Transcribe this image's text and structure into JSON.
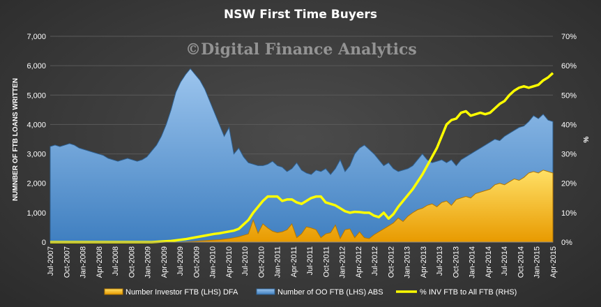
{
  "chart_data": {
    "type": "area",
    "title": "NSW First Time Buyers",
    "watermark": "©Digital Finance Analytics",
    "ylabel": "NUMNBER OF FTB LOANS WRITTEN",
    "y2label": "%",
    "ylim": [
      0,
      7000
    ],
    "y2lim": [
      0,
      70
    ],
    "yticks": [
      0,
      1000,
      2000,
      3000,
      4000,
      5000,
      6000,
      7000
    ],
    "y2ticks": [
      0,
      10,
      20,
      30,
      40,
      50,
      60,
      70
    ],
    "x_tick_labels": [
      "Jul-2007",
      "Oct-2007",
      "Jan-2008",
      "Apr-2008",
      "Jul-2008",
      "Oct-2008",
      "Jan-2009",
      "Apr-2009",
      "Jul-2009",
      "Oct-2009",
      "Jan-2010",
      "Apr-2010",
      "Jul-2010",
      "Oct-2010",
      "Jan-2011",
      "Apr-2011",
      "Jul-2011",
      "Oct-2011",
      "Jan-2012",
      "Apr-2012",
      "Jul-2012",
      "Oct-2012",
      "Jan-2013",
      "Apr-2013",
      "Jul-2013",
      "Oct-2013",
      "Jan-2014",
      "Apr-2014",
      "Jul-2014",
      "Oct-2014",
      "Jan-2015",
      "Apr-2015"
    ],
    "x_start": "Jul-2007",
    "legend_position": "bottom",
    "grid": true,
    "series": [
      {
        "name": "Number Investor FTB (LHS) DFA",
        "kind": "area",
        "axis": "left",
        "color": "#ffc000",
        "values": [
          0,
          0,
          0,
          0,
          0,
          0,
          0,
          0,
          0,
          0,
          0,
          0,
          0,
          0,
          0,
          0,
          0,
          0,
          0,
          0,
          0,
          0,
          0,
          0,
          0,
          0,
          0,
          0,
          10,
          20,
          30,
          40,
          50,
          60,
          70,
          80,
          100,
          120,
          150,
          180,
          230,
          280,
          750,
          300,
          620,
          480,
          370,
          320,
          350,
          420,
          620,
          150,
          280,
          520,
          480,
          420,
          150,
          280,
          320,
          580,
          120,
          420,
          450,
          150,
          350,
          150,
          120,
          250,
          350,
          450,
          550,
          650,
          820,
          700,
          880,
          1000,
          1100,
          1150,
          1250,
          1300,
          1200,
          1350,
          1400,
          1250,
          1450,
          1500,
          1550,
          1500,
          1650,
          1700,
          1750,
          1800,
          1950,
          2000,
          1950,
          2050,
          2150,
          2100,
          2200,
          2350,
          2400,
          2350,
          2450,
          2400,
          2350
        ]
      },
      {
        "name": "Number of OO FTB (LHS) ABS",
        "kind": "area",
        "axis": "left",
        "color": "#5b9bd5",
        "values": [
          3250,
          3300,
          3250,
          3300,
          3350,
          3300,
          3200,
          3150,
          3100,
          3050,
          3000,
          2950,
          2850,
          2800,
          2750,
          2800,
          2850,
          2800,
          2750,
          2800,
          2900,
          3100,
          3300,
          3600,
          4000,
          4500,
          5100,
          5450,
          5700,
          5900,
          5700,
          5500,
          5200,
          4800,
          4400,
          4000,
          3600,
          3900,
          3000,
          3200,
          2900,
          2700,
          2650,
          2600,
          2600,
          2650,
          2750,
          2600,
          2550,
          2400,
          2500,
          2700,
          2450,
          2350,
          2300,
          2450,
          2400,
          2500,
          2300,
          2500,
          2800,
          2400,
          2600,
          3000,
          3200,
          3300,
          3150,
          3000,
          2800,
          2600,
          2700,
          2500,
          2400,
          2450,
          2500,
          2600,
          2800,
          3000,
          2800,
          2700,
          2750,
          2800,
          2700,
          2800,
          2600,
          2800,
          2900,
          3000,
          3100,
          3200,
          3300,
          3400,
          3500,
          3450,
          3600,
          3700,
          3800,
          3900,
          3950,
          4100,
          4300,
          4200,
          4350,
          4150,
          4100
        ]
      },
      {
        "name": "% INV FTB to All FTB (RHS)",
        "kind": "line",
        "axis": "right",
        "color": "#ffff00",
        "values": [
          0,
          0,
          0,
          0,
          0,
          0,
          0,
          0,
          0,
          0,
          0,
          0,
          0,
          0,
          0,
          0,
          0,
          0,
          0,
          0,
          0,
          0,
          0.1,
          0.2,
          0.3,
          0.4,
          0.6,
          0.8,
          1.0,
          1.3,
          1.6,
          1.9,
          2.2,
          2.5,
          2.8,
          3.0,
          3.3,
          3.6,
          3.9,
          4.5,
          6.0,
          7.5,
          10.0,
          12.0,
          14.0,
          15.5,
          15.5,
          15.5,
          14.0,
          14.5,
          14.5,
          13.5,
          13.0,
          14.0,
          15.0,
          15.5,
          15.5,
          13.5,
          13.0,
          12.5,
          11.5,
          10.5,
          10.0,
          10.3,
          10.2,
          10.0,
          10.0,
          9.0,
          8.5,
          10.0,
          8.0,
          9.5,
          12.0,
          14.0,
          16.0,
          18.0,
          20.5,
          23.0,
          26.0,
          29.0,
          32.0,
          36.0,
          40.0,
          41.5,
          42.0,
          44.0,
          44.5,
          43.0,
          43.5,
          44.0,
          43.5,
          44.0,
          45.5,
          47.0,
          48.0,
          50.0,
          51.5,
          52.5,
          53.0,
          52.5,
          53.0,
          53.5,
          55.0,
          56.0,
          57.5
        ]
      }
    ],
    "legend": [
      {
        "label": "Number Investor FTB (LHS) DFA"
      },
      {
        "label": "Number of OO FTB (LHS) ABS"
      },
      {
        "label": "% INV FTB to All FTB (RHS)"
      }
    ]
  }
}
